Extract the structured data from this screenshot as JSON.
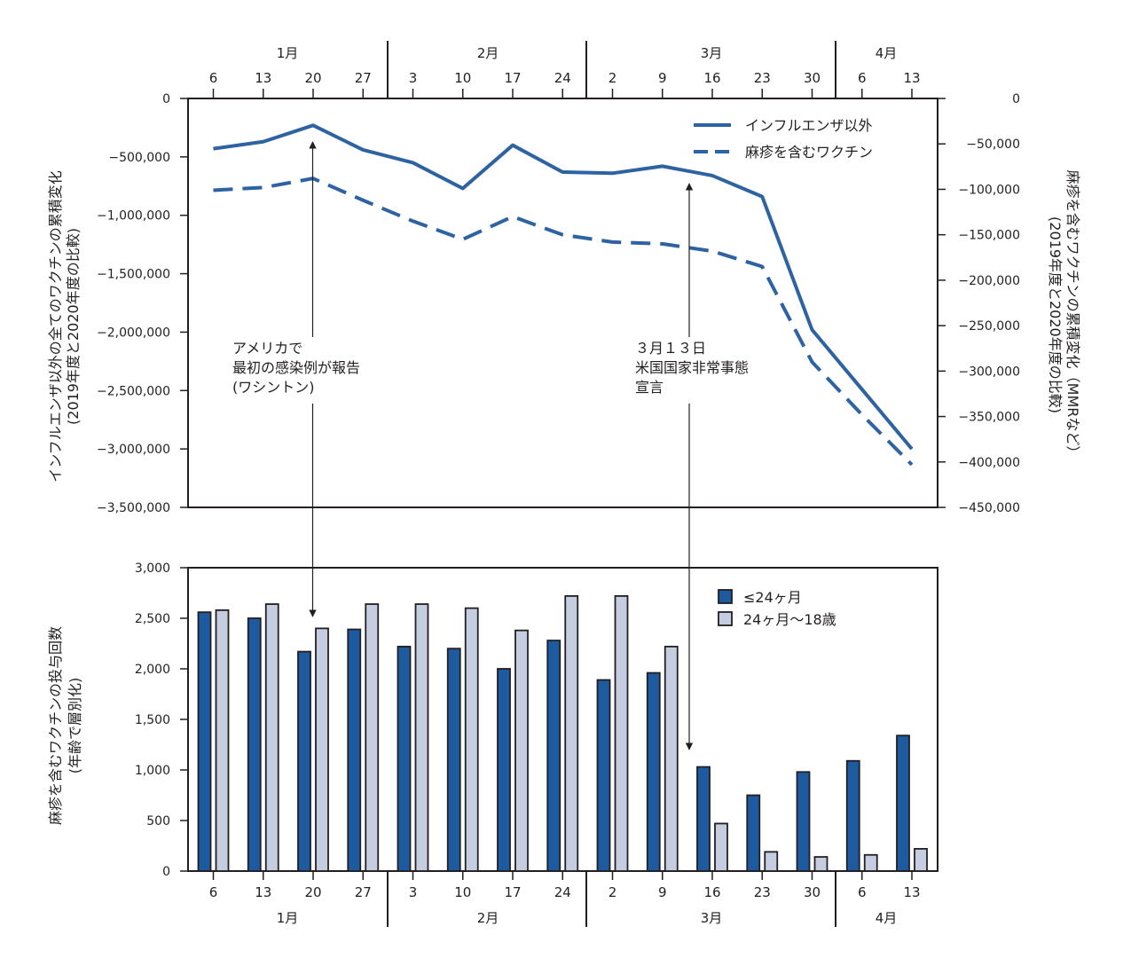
{
  "chart_data": [
    {
      "type": "line",
      "xlabel": "",
      "x_month_labels": [
        "1月",
        "2月",
        "3月",
        "4月"
      ],
      "x_tick_labels": [
        "6",
        "13",
        "20",
        "27",
        "3",
        "10",
        "17",
        "24",
        "2",
        "9",
        "16",
        "23",
        "30",
        "6",
        "13"
      ],
      "y_left_label": "インフルエンザ以外の全てのワクチンの累積変化",
      "y_left_label_sub": "(2019年度と2020年度の比較)",
      "y_left_ticks": [
        "0",
        "−500,000",
        "−1,000,000",
        "−1,500,000",
        "−2,000,000",
        "−2,500,000",
        "−3,000,000",
        "−3,500,000"
      ],
      "y_left_lim": [
        -3500000,
        0
      ],
      "y_right_label": "麻疹を含むワクチンの累積変化（MMRなど）",
      "y_right_label_sub": "(2019年度と2020年度の比較)",
      "y_right_ticks": [
        "0",
        "−50,000",
        "−100,000",
        "−150,000",
        "−200,000",
        "−250,000",
        "−300,000",
        "−350,000",
        "−400,000",
        "−450,000"
      ],
      "y_right_lim": [
        -450000,
        0
      ],
      "legend_position": "top-right",
      "series": [
        {
          "name": "インフルエンザ以外",
          "axis": "left",
          "style": "solid",
          "color": "#2e63a3",
          "values": [
            -430000,
            -370000,
            -230000,
            -440000,
            -550000,
            -770000,
            -400000,
            -630000,
            -640000,
            -580000,
            -660000,
            -840000,
            -1980000,
            -2490000,
            -3000000
          ]
        },
        {
          "name": "麻疹を含むワクチン",
          "axis": "right",
          "style": "dashed",
          "color": "#2e63a3",
          "values": [
            -101000,
            -98000,
            -88000,
            -112000,
            -135000,
            -155000,
            -130000,
            -150000,
            -158000,
            -160000,
            -168000,
            -185000,
            -290000,
            -348000,
            -403000
          ]
        }
      ],
      "annotations": [
        {
          "lines": [
            "アメリカで",
            "最初の感染例が報告",
            "(ワシントン)"
          ],
          "at_tick": 2
        },
        {
          "lines": [
            "３月１３日",
            "米国国家非常事態",
            "宣言"
          ],
          "at_tick": 9.6
        }
      ]
    },
    {
      "type": "bar",
      "ylabel": "麻疹を含むワクチンの投与回数",
      "ylabel_sub": "(年齢で層別化)",
      "y_ticks": [
        "3,000",
        "2,500",
        "2,000",
        "1,500",
        "1,000",
        "500",
        "0"
      ],
      "ylim": [
        0,
        3000
      ],
      "x_tick_labels": [
        "6",
        "13",
        "20",
        "27",
        "3",
        "10",
        "17",
        "24",
        "2",
        "9",
        "16",
        "23",
        "30",
        "6",
        "13"
      ],
      "x_month_labels": [
        "1月",
        "2月",
        "3月",
        "4月"
      ],
      "legend_position": "top-right",
      "series": [
        {
          "name": "≤24ヶ月",
          "color": "#1e5aa0",
          "values": [
            2560,
            2500,
            2170,
            2390,
            2220,
            2200,
            2000,
            2280,
            1890,
            1960,
            1030,
            750,
            980,
            1090,
            1340
          ]
        },
        {
          "name": "24ヶ月～18歳",
          "color": "#c5cde0",
          "values": [
            2580,
            2640,
            2400,
            2640,
            2640,
            2600,
            2380,
            2720,
            2720,
            2220,
            470,
            190,
            140,
            160,
            220
          ]
        }
      ]
    }
  ]
}
